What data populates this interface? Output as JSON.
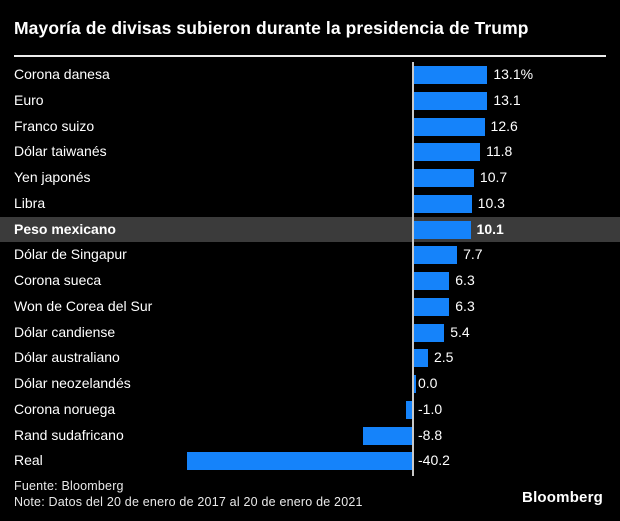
{
  "title": "Mayoría de divisas subieron durante la presidencia de Trump",
  "footer": {
    "source": "Fuente: Bloomberg",
    "note": "Note: Datos del 20 de enero de 2017 al 20 de enero de 2021",
    "logo": "Bloomberg"
  },
  "colors": {
    "background": "#000000",
    "text": "#ffffff",
    "bar": "#1583fa",
    "baseline": "#c9c9c9",
    "highlight_row": "#3b3b3b",
    "divider": "#ededed",
    "footer_text": "#e9e9e9"
  },
  "chart_data": {
    "type": "bar",
    "orientation": "horizontal",
    "title": "Mayoría de divisas subieron durante la presidencia de Trump",
    "xlabel": "",
    "ylabel": "",
    "unit": "%",
    "xlim": [
      -40.2,
      13.1
    ],
    "baseline": 0,
    "grid": false,
    "legend": false,
    "categories": [
      "Corona danesa",
      "Euro",
      "Franco suizo",
      "Dólar taiwanés",
      "Yen japonés",
      "Libra",
      "Peso mexicano",
      "Dólar de Singapur",
      "Corona sueca",
      "Won de Corea del Sur",
      "Dólar candiense",
      "Dólar australiano",
      "Dólar neozelandés",
      "Corona noruega",
      "Rand sudafricano",
      "Real"
    ],
    "values": [
      13.1,
      13.1,
      12.6,
      11.8,
      10.7,
      10.3,
      10.1,
      7.7,
      6.3,
      6.3,
      5.4,
      2.5,
      0.0,
      -1.0,
      -8.8,
      -40.2
    ],
    "value_labels": [
      "13.1%",
      "13.1",
      "12.6",
      "11.8",
      "10.7",
      "10.3",
      "10.1",
      "7.7",
      "6.3",
      "6.3",
      "5.4",
      "2.5",
      "0.0",
      "-1.0",
      "-8.8",
      "-40.2"
    ],
    "highlighted_category": "Peso mexicano",
    "highlight_index": 6
  }
}
